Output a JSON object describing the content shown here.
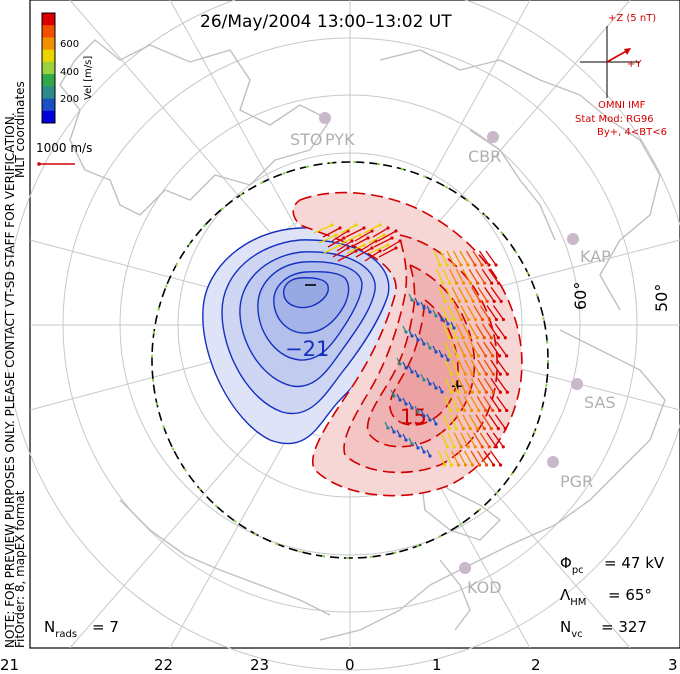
{
  "title": "26/May/2004 13:00–13:02 UT",
  "side_note": "NOTE: FOR PREVIEW PURPOSES ONLY. PLEASE CONTACT VT-SD STAFF FOR VERIFICATION.",
  "side_note_2": "FitOrder: 8, mapEX format",
  "coords_label": "MLT coordinates",
  "colorbar": {
    "label": "Vel [m/s]",
    "ticks": [
      "600",
      "400",
      "200"
    ],
    "colors": [
      "#d80000",
      "#f05000",
      "#f39000",
      "#e9d400",
      "#9ad23c",
      "#2fa84a",
      "#2e8b8b",
      "#1c4fc4",
      "#0000d8"
    ]
  },
  "scale": {
    "label": "1000 m/s",
    "icon": "velocity-scale-vector"
  },
  "imf": {
    "z_label": "+Z (5 nT)",
    "y_label": "+Y",
    "line1": "OMNI IMF",
    "line2": "Stat Mod: RG96",
    "line3": "By+, 4<BT<6"
  },
  "stations": [
    "STO",
    "PYK",
    "CBR",
    "KAP",
    "SAS",
    "PGR",
    "KOD"
  ],
  "latitude_labels": [
    "60°",
    "50°"
  ],
  "contour_labels": {
    "neg": "−21",
    "pos": "15"
  },
  "potential": {
    "phi_text": "= 47 kV",
    "lambda_text": "= 65°",
    "nvc_text": "= 327"
  },
  "nrads": {
    "text": "= 7"
  },
  "mlt_axis": [
    "21",
    "22",
    "23",
    "0",
    "1",
    "2",
    "3"
  ],
  "colors": {
    "neg_contour": "#1530c0",
    "pos_contour": "#d00000",
    "neg_fill": "#c8d0f2",
    "pos_fill": "#f6c7c7",
    "grid": "#c8c8c8",
    "coast": "#c0c0c0"
  }
}
